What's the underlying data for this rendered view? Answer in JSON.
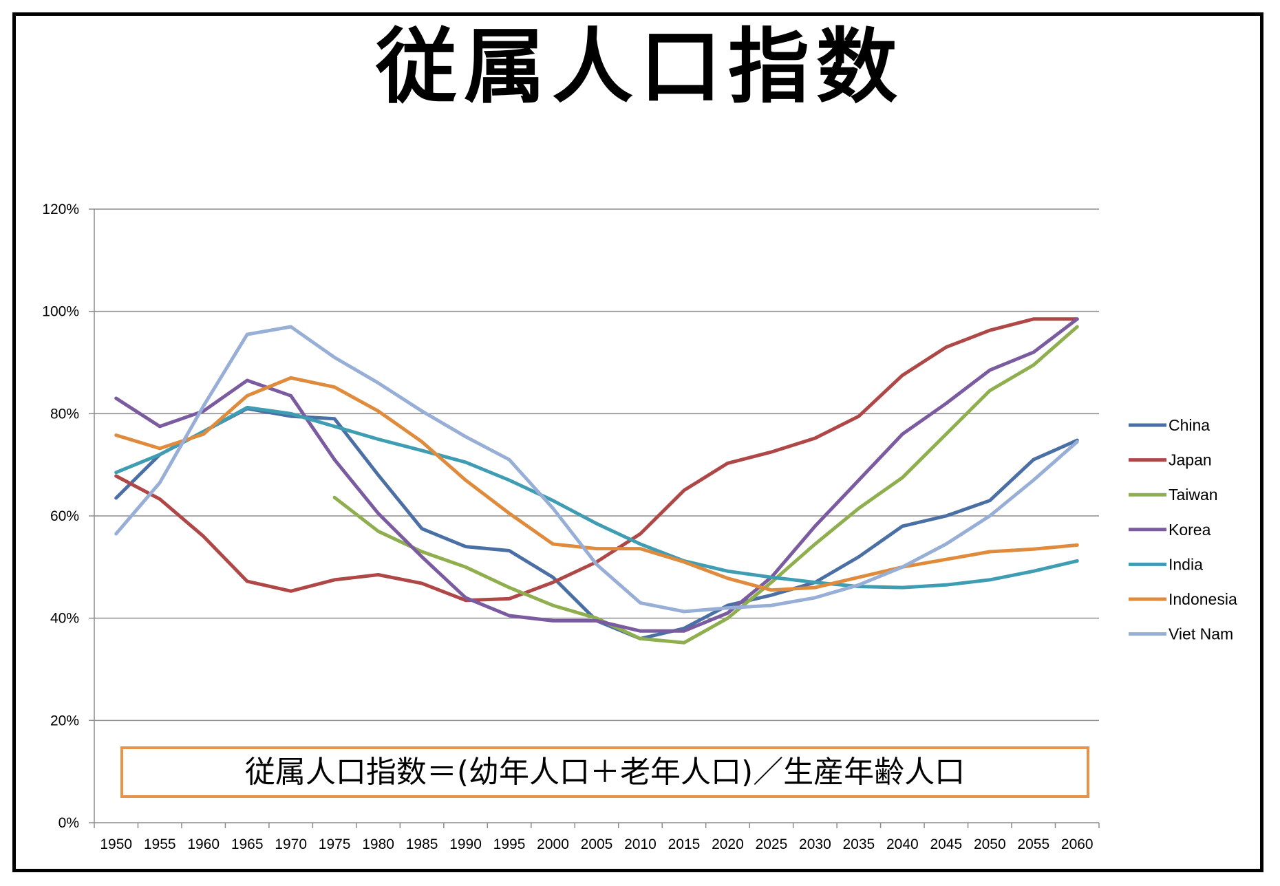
{
  "chart_data": {
    "type": "line",
    "title": "従属人口指数",
    "formula_note": "従属人口指数＝(幼年人口＋老年人口)／生産年齢人口",
    "xlabel": "",
    "ylabel": "",
    "ylim": [
      0,
      120
    ],
    "y_ticks": [
      "0%",
      "20%",
      "40%",
      "60%",
      "80%",
      "100%",
      "120%"
    ],
    "y_tick_values": [
      0,
      20,
      40,
      60,
      80,
      100,
      120
    ],
    "categories": [
      "1950",
      "1955",
      "1960",
      "1965",
      "1970",
      "1975",
      "1980",
      "1985",
      "1990",
      "1995",
      "2000",
      "2005",
      "2010",
      "2015",
      "2020",
      "2025",
      "2030",
      "2035",
      "2040",
      "2045",
      "2050",
      "2055",
      "2060"
    ],
    "grid": true,
    "legend_position": "right",
    "series": [
      {
        "name": "China",
        "color": "#4A6FA5",
        "values": [
          63.5,
          72,
          76.5,
          81,
          79.5,
          79,
          68,
          57.5,
          54,
          53.2,
          48,
          39.5,
          36,
          38,
          42.5,
          44.5,
          47,
          52,
          58,
          60,
          63,
          71,
          74.8
        ]
      },
      {
        "name": "Japan",
        "color": "#B04747",
        "values": [
          67.8,
          63.3,
          56,
          47.2,
          45.3,
          47.5,
          48.5,
          46.8,
          43.5,
          43.8,
          47,
          51,
          56.5,
          65,
          70.3,
          72.5,
          75.2,
          79.5,
          87.5,
          93,
          96.3,
          98.5,
          98.5
        ]
      },
      {
        "name": "Taiwan",
        "color": "#8FAF4F",
        "values": [
          null,
          null,
          null,
          null,
          null,
          63.6,
          57,
          53,
          50,
          46,
          42.5,
          40,
          36,
          35.2,
          40,
          47,
          54.5,
          61.5,
          67.5,
          76,
          84.5,
          89.5,
          97
        ]
      },
      {
        "name": "Korea",
        "color": "#7A5BA0",
        "values": [
          83,
          77.5,
          80.5,
          86.5,
          83.5,
          71,
          60.5,
          52,
          44,
          40.5,
          39.5,
          39.5,
          37.5,
          37.5,
          41,
          48,
          58,
          67,
          76,
          82,
          88.5,
          92,
          98.5
        ]
      },
      {
        "name": "India",
        "color": "#3E9DB2",
        "values": [
          68.5,
          72,
          76.5,
          81.2,
          80,
          77.5,
          75,
          72.8,
          70.5,
          67,
          63,
          58.5,
          54.5,
          51.2,
          49.2,
          48,
          47,
          46.2,
          46,
          46.5,
          47.5,
          49.2,
          51.2
        ]
      },
      {
        "name": "Indonesia",
        "color": "#E08B3C",
        "values": [
          75.8,
          73.2,
          76,
          83.5,
          87,
          85.2,
          80.5,
          74.5,
          67,
          60.5,
          54.5,
          53.6,
          53.6,
          51,
          47.8,
          45.5,
          46,
          48,
          50,
          51.5,
          53,
          53.5,
          54.3
        ]
      },
      {
        "name": "Viet Nam",
        "color": "#97AED6",
        "values": [
          56.5,
          66.5,
          81.5,
          95.5,
          97,
          91,
          86,
          80.5,
          75.5,
          71,
          61.5,
          50.5,
          43,
          41.3,
          42,
          42.5,
          44,
          46.5,
          50,
          54.5,
          60,
          67,
          74.5
        ]
      }
    ]
  }
}
